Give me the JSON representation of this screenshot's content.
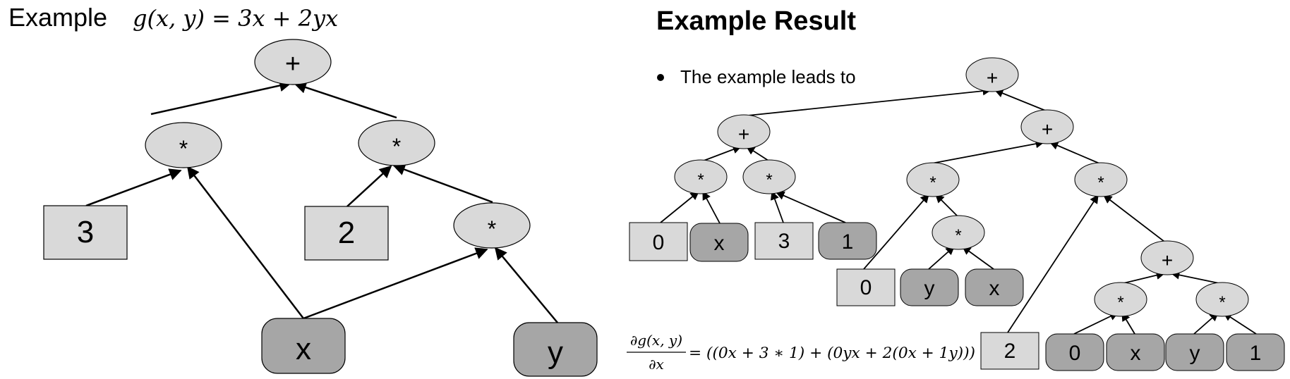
{
  "left": {
    "title_prefix": "Example",
    "title_formula": "g(x, y)  =  3x  +  2yx",
    "tree": {
      "root": "+",
      "mul_left": "*",
      "mul_right": "*",
      "mul_inner": "*",
      "const_3": "3",
      "const_2": "2",
      "var_x": "x",
      "var_y": "y"
    }
  },
  "right": {
    "title": "Example Result",
    "bullet": "The example leads to",
    "tree": {
      "root": "+",
      "plus_a": "+",
      "plus_b": "+",
      "plus_c": "+",
      "mul_a1": "*",
      "mul_a2": "*",
      "mul_b1": "*",
      "mul_b2": "*",
      "mul_b1_inner": "*",
      "mul_c1": "*",
      "mul_c2": "*",
      "leaf_0a": "0",
      "leaf_xa": "x",
      "leaf_3": "3",
      "leaf_1a": "1",
      "leaf_0b": "0",
      "leaf_yb": "y",
      "leaf_xb": "x",
      "leaf_2": "2",
      "leaf_0c": "0",
      "leaf_xc": "x",
      "leaf_yc": "y",
      "leaf_1c": "1"
    },
    "derivative_numerator": "∂g(x, y)",
    "derivative_denominator": "∂x",
    "derivative_rhs": "= ((0x + 3 ∗ 1) + (0yx + 2(0x + 1y)))"
  },
  "colors": {
    "node_fill": "#d9d9d9",
    "variable_fill": "#a6a6a6",
    "stroke": "#000000"
  }
}
